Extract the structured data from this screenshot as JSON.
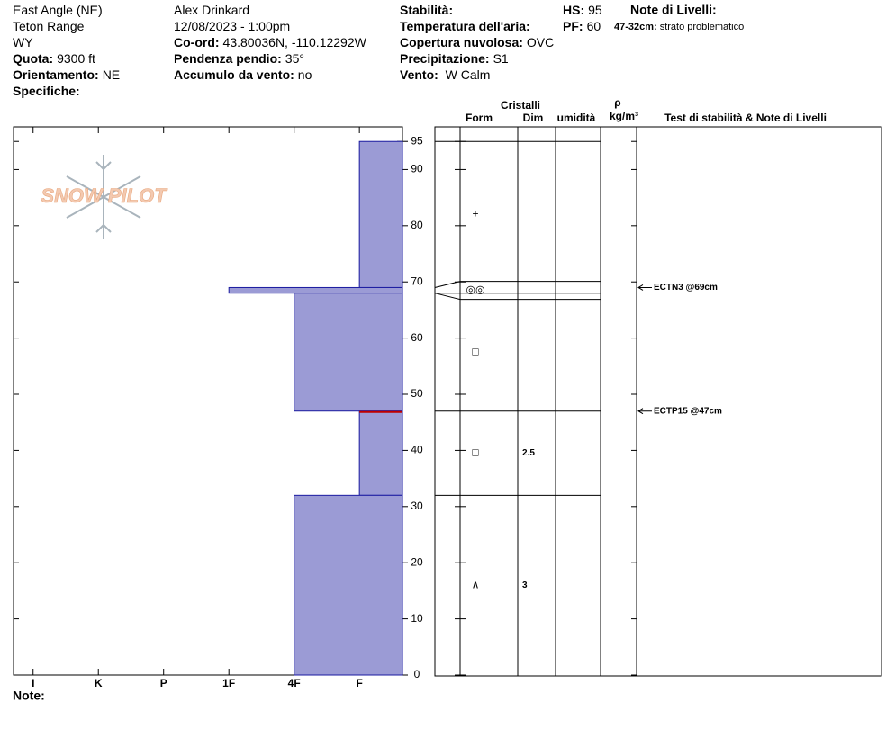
{
  "header": {
    "columns": [
      [
        {
          "value": "East Angle (NE)"
        },
        {
          "value": "Teton Range"
        },
        {
          "value": "WY"
        },
        {
          "label": "Quota:",
          "value": "9300 ft"
        },
        {
          "label": "Orientamento:",
          "value": "NE"
        },
        {
          "label": "Specifiche:"
        }
      ],
      [
        {
          "value": "Alex Drinkard"
        },
        {
          "value": "12/08/2023 - 1:00pm"
        },
        {
          "label": "Co-ord:",
          "value": "43.80036N, -110.12292W"
        },
        {
          "label": "Pendenza pendio:",
          "value": "35°"
        },
        {
          "label": "Accumulo da vento:",
          "value": "no"
        }
      ],
      [
        {
          "label": "Stabilità:"
        },
        {
          "label": "Temperatura dell'aria:"
        },
        {
          "label": "Copertura nuvolosa:",
          "value": "OVC"
        },
        {
          "label": "Precipitazione:",
          "value": "S1"
        },
        {
          "label": "Vento:",
          "value": " W Calm"
        }
      ],
      [
        {
          "label": "HS:",
          "value": 95
        },
        {
          "label": "PF:",
          "value": 60
        }
      ]
    ],
    "layer_notes": {
      "title": "Note di Livelli:",
      "items": [
        {
          "label": "47-32cm:",
          "value": "strato problematico"
        }
      ]
    }
  },
  "logo": "SNOW PILOT",
  "columns_header": {
    "crystals": "Cristalli",
    "form": "Form",
    "size": "Dim",
    "wetness": "umidità",
    "density_symbol": "ρ",
    "density_unit": "kg/m³",
    "tests": "Test di stabilità & Note di Livelli"
  },
  "notes_label": "Note:",
  "chart_data": {
    "type": "snow-profile",
    "ylim": [
      0,
      97.6
    ],
    "yticks": [
      0,
      10,
      20,
      30,
      40,
      50,
      60,
      70,
      80,
      90,
      95
    ],
    "xlim": [
      6.3,
      0.34
    ],
    "xticks": [
      {
        "value": 6,
        "label": "I"
      },
      {
        "value": 5,
        "label": "K"
      },
      {
        "value": 4,
        "label": "P"
      },
      {
        "value": 3,
        "label": "1F"
      },
      {
        "value": 2,
        "label": "4F"
      },
      {
        "value": 1,
        "label": "F"
      }
    ],
    "bar_color": "#9b9bd5",
    "layers": [
      {
        "top": 95,
        "bottom": 69,
        "hardness": 1,
        "form": "+"
      },
      {
        "top": 69,
        "bottom": 68,
        "hardness": 3,
        "form": "◎◎"
      },
      {
        "top": 68,
        "bottom": 47,
        "hardness": 2,
        "form": "□"
      },
      {
        "top": 47,
        "bottom": 32,
        "hardness": 1,
        "form": "□",
        "size": 2.5
      },
      {
        "top": 32,
        "bottom": 0,
        "hardness": 2,
        "form": "∧",
        "size": 3
      }
    ],
    "critical_layer": {
      "depth": 47,
      "color": "#c00000"
    },
    "tests": [
      {
        "depth": 69,
        "label": "ECTN3 @69cm"
      },
      {
        "depth": 47,
        "label": "ECTP15 @47cm"
      }
    ]
  }
}
